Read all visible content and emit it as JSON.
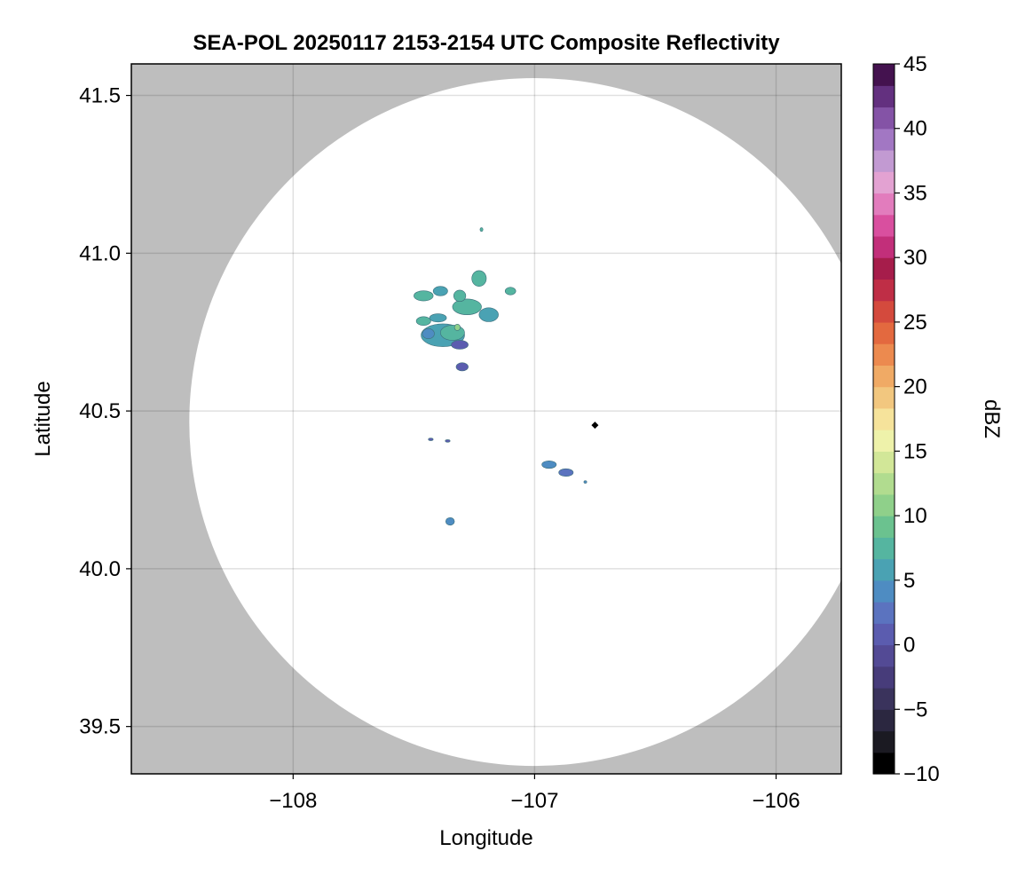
{
  "chart_data": {
    "type": "heatmap",
    "title": "SEA-POL 20250117 2153-2154 UTC Composite Reflectivity",
    "xlabel": "Longitude",
    "ylabel": "Latitude",
    "xlim": [
      -108.67,
      -105.73
    ],
    "ylim": [
      39.35,
      41.6
    ],
    "xticks": [
      -108,
      -107,
      -106
    ],
    "xtick_labels": [
      "−108",
      "−107",
      "−106"
    ],
    "yticks": [
      39.5,
      40.0,
      40.5,
      41.0,
      41.5
    ],
    "ytick_labels": [
      "39.5",
      "40.0",
      "40.5",
      "41.0",
      "41.5"
    ],
    "grid": true,
    "background_color": "#bebebe",
    "domain_color": "#ffffff",
    "radar_domain": {
      "center_lon": -107.0,
      "center_lat": 40.465,
      "radius_deg_lon": 1.43,
      "radius_deg_lat": 1.09
    },
    "radar_site": {
      "lon": -106.75,
      "lat": 40.455
    },
    "colorbar": {
      "label": "dBZ",
      "min": -10,
      "max": 45,
      "step": 2.5,
      "ticks": [
        -10,
        -5,
        0,
        5,
        10,
        15,
        20,
        25,
        30,
        35,
        40,
        45
      ],
      "tick_labels": [
        "−10",
        "−5",
        "0",
        "5",
        "10",
        "15",
        "20",
        "25",
        "30",
        "35",
        "40",
        "45"
      ],
      "colors": [
        "#000000",
        "#1b1a22",
        "#2b2740",
        "#3a335c",
        "#473c7a",
        "#534a95",
        "#5b5caf",
        "#5b73bf",
        "#4e8cc2",
        "#4aa2b3",
        "#55b5a0",
        "#6bc28f",
        "#8fd08a",
        "#b1dc8f",
        "#d2e798",
        "#eef2aa",
        "#f6e39b",
        "#f2c77f",
        "#f0aa65",
        "#ec8a4f",
        "#e3693f",
        "#d44a3d",
        "#bf2e46",
        "#a61d4b",
        "#c22f7a",
        "#d94f9f",
        "#e27cbd",
        "#e3a2d2",
        "#c29ad2",
        "#a277c3",
        "#8453a6",
        "#63307f",
        "#44124f"
      ]
    },
    "echoes": [
      {
        "lon": -107.38,
        "lat": 40.74,
        "rx": 0.09,
        "ry": 0.036,
        "dbz": 14
      },
      {
        "lon": -107.34,
        "lat": 40.748,
        "rx": 0.05,
        "ry": 0.024,
        "dbz": 17
      },
      {
        "lon": -107.31,
        "lat": 40.71,
        "rx": 0.035,
        "ry": 0.014,
        "dbz": 6
      },
      {
        "lon": -107.44,
        "lat": 40.745,
        "rx": 0.025,
        "ry": 0.016,
        "dbz": 10
      },
      {
        "lon": -107.32,
        "lat": 40.765,
        "rx": 0.012,
        "ry": 0.01,
        "dbz": 22
      },
      {
        "lon": -107.46,
        "lat": 40.785,
        "rx": 0.03,
        "ry": 0.014,
        "dbz": 15
      },
      {
        "lon": -107.4,
        "lat": 40.795,
        "rx": 0.035,
        "ry": 0.013,
        "dbz": 14
      },
      {
        "lon": -107.3,
        "lat": 40.64,
        "rx": 0.025,
        "ry": 0.013,
        "dbz": 6
      },
      {
        "lon": -107.46,
        "lat": 40.865,
        "rx": 0.04,
        "ry": 0.016,
        "dbz": 15
      },
      {
        "lon": -107.28,
        "lat": 40.83,
        "rx": 0.06,
        "ry": 0.025,
        "dbz": 16
      },
      {
        "lon": -107.39,
        "lat": 40.88,
        "rx": 0.03,
        "ry": 0.015,
        "dbz": 14
      },
      {
        "lon": -107.31,
        "lat": 40.865,
        "rx": 0.025,
        "ry": 0.018,
        "dbz": 15
      },
      {
        "lon": -107.23,
        "lat": 40.92,
        "rx": 0.03,
        "ry": 0.025,
        "dbz": 17
      },
      {
        "lon": -107.19,
        "lat": 40.805,
        "rx": 0.04,
        "ry": 0.022,
        "dbz": 14
      },
      {
        "lon": -107.1,
        "lat": 40.88,
        "rx": 0.022,
        "ry": 0.012,
        "dbz": 15
      },
      {
        "lon": -107.22,
        "lat": 41.075,
        "rx": 0.006,
        "ry": 0.006,
        "dbz": 16
      },
      {
        "lon": -107.43,
        "lat": 40.41,
        "rx": 0.01,
        "ry": 0.004,
        "dbz": 6
      },
      {
        "lon": -107.36,
        "lat": 40.405,
        "rx": 0.01,
        "ry": 0.004,
        "dbz": 6
      },
      {
        "lon": -106.94,
        "lat": 40.33,
        "rx": 0.03,
        "ry": 0.012,
        "dbz": 10
      },
      {
        "lon": -106.87,
        "lat": 40.305,
        "rx": 0.03,
        "ry": 0.012,
        "dbz": 9
      },
      {
        "lon": -106.79,
        "lat": 40.275,
        "rx": 0.006,
        "ry": 0.004,
        "dbz": 10
      },
      {
        "lon": -107.35,
        "lat": 40.15,
        "rx": 0.018,
        "ry": 0.012,
        "dbz": 12
      }
    ]
  }
}
